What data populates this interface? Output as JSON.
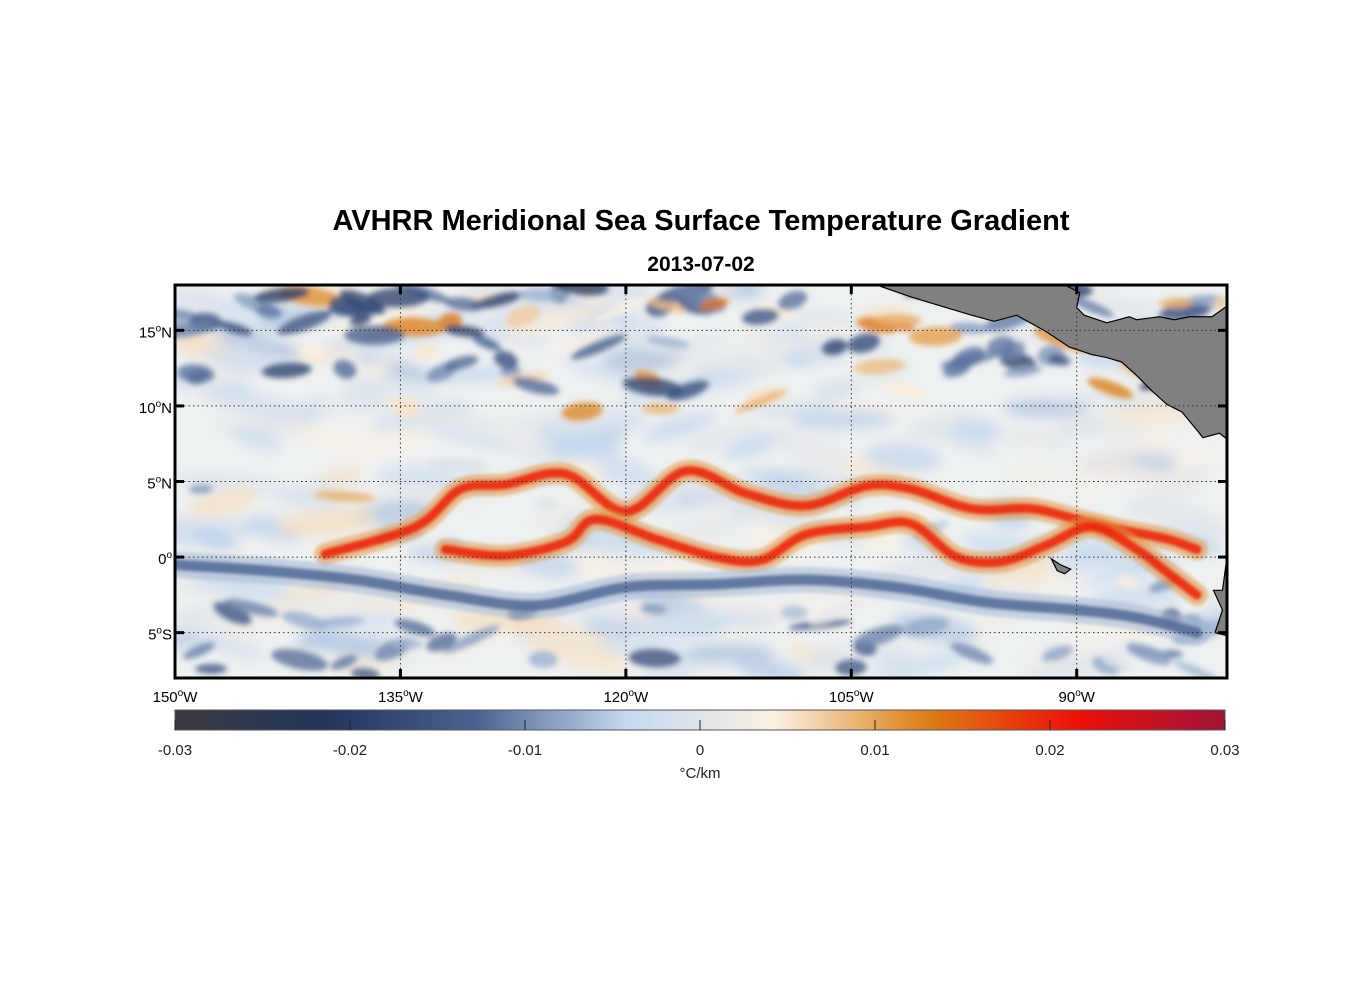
{
  "chart_data": {
    "type": "heatmap",
    "title": "AVHRR Meridional Sea Surface Temperature Gradient",
    "subtitle": "2013-07-02",
    "x_range": [
      -150,
      -80
    ],
    "y_range": [
      -8,
      18
    ],
    "lon_ticks": [
      {
        "value": -150,
        "deg": "150",
        "suffix": "W"
      },
      {
        "value": -135,
        "deg": "135",
        "suffix": "W"
      },
      {
        "value": -120,
        "deg": "120",
        "suffix": "W"
      },
      {
        "value": -105,
        "deg": "105",
        "suffix": "W"
      },
      {
        "value": -90,
        "deg": "90",
        "suffix": "W"
      }
    ],
    "lat_ticks": [
      {
        "value": 15,
        "deg": "15",
        "suffix": "N"
      },
      {
        "value": 10,
        "deg": "10",
        "suffix": "N"
      },
      {
        "value": 5,
        "deg": "5",
        "suffix": "N"
      },
      {
        "value": 0,
        "deg": "0",
        "suffix": ""
      },
      {
        "value": -5,
        "deg": "5",
        "suffix": "S"
      }
    ],
    "grid": true,
    "colorbar": {
      "range": [
        -0.03,
        0.03
      ],
      "ticks": [
        -0.03,
        -0.02,
        -0.01,
        0,
        0.01,
        0.02,
        0.03
      ],
      "tick_labels": [
        "-0.03",
        "-0.02",
        "-0.01",
        "0",
        "0.01",
        "0.02",
        "0.03"
      ],
      "label": "°C/km",
      "colors": [
        "#3a3b3e",
        "#22345c",
        "#4a6291",
        "#c4d8ef",
        "#fbf1e3",
        "#db8016",
        "#ef1108",
        "#a0143a"
      ]
    },
    "features": [
      {
        "name": "positive-front-north-edge",
        "sign": "positive",
        "approx_value": 0.02,
        "lon": [
          -140,
          -134,
          -131,
          -128,
          -124,
          -120,
          -116,
          -112,
          -108,
          -104,
          -101,
          -97,
          -93,
          -90,
          -87,
          -84,
          -82
        ],
        "lat": [
          0.2,
          2.0,
          4.5,
          4.8,
          5.5,
          3.0,
          5.7,
          4.2,
          3.4,
          4.7,
          4.5,
          3.2,
          3.2,
          2.5,
          1.8,
          1.2,
          0.5
        ]
      },
      {
        "name": "positive-front-equator",
        "sign": "positive",
        "approx_value": 0.02,
        "lon": [
          -132,
          -128,
          -124,
          -122,
          -118,
          -114,
          -111,
          -108,
          -104,
          -101,
          -98,
          -95,
          -92,
          -89,
          -86,
          -84,
          -82
        ],
        "lat": [
          0.5,
          0.1,
          1.0,
          2.5,
          1.2,
          0.0,
          -0.2,
          1.5,
          2.0,
          2.2,
          0.0,
          -0.3,
          0.8,
          2.0,
          0.5,
          -1.0,
          -2.5
        ]
      },
      {
        "name": "negative-band-south",
        "sign": "negative",
        "approx_value": -0.012,
        "lon": [
          -150,
          -144,
          -138,
          -132,
          -126,
          -120,
          -114,
          -108,
          -102,
          -96,
          -90,
          -86,
          -82
        ],
        "lat": [
          -0.5,
          -0.9,
          -1.5,
          -2.5,
          -3.2,
          -2.0,
          -1.8,
          -1.5,
          -2.0,
          -3.0,
          -3.5,
          -4.0,
          -5.0
        ]
      }
    ],
    "land": [
      {
        "name": "central-america",
        "lon": [
          -103.3,
          -101,
          -99,
          -97,
          -95.5,
          -94,
          -92,
          -90.5,
          -89,
          -88,
          -87,
          -86,
          -85,
          -84,
          -83,
          -82,
          -81.6,
          -80.5,
          -80,
          -80,
          -81,
          -82.5,
          -83.5,
          -84.5,
          -86,
          -86.5,
          -88,
          -89.5,
          -90,
          -89.8,
          -90.8,
          -91.4,
          -91.5,
          -92.5,
          -94,
          -96,
          -98,
          -100,
          -102,
          -103.3
        ],
        "lat": [
          18,
          17.2,
          16.6,
          16.0,
          15.6,
          16.0,
          14.9,
          13.9,
          13.4,
          13.2,
          12.9,
          12.0,
          11.0,
          10.1,
          9.6,
          8.4,
          7.9,
          8.2,
          7.8,
          16.6,
          15.9,
          15.9,
          15.7,
          15.9,
          15.7,
          15.9,
          15.5,
          16.0,
          16.5,
          17.5,
          18,
          18,
          18,
          18,
          18,
          18,
          18,
          18,
          18,
          18
        ]
      },
      {
        "name": "south-america",
        "lon": [
          -80,
          -80.3,
          -80.9,
          -80.3,
          -80.8,
          -80.0
        ],
        "lat": [
          -0.0,
          -2.2,
          -2.2,
          -3.5,
          -5.0,
          -5.2
        ]
      },
      {
        "name": "galapagos",
        "lon": [
          -91.7,
          -91.1,
          -90.4,
          -90.8,
          -91.3
        ],
        "lat": [
          -0.1,
          -0.5,
          -0.8,
          -1.1,
          -0.9
        ]
      }
    ]
  }
}
